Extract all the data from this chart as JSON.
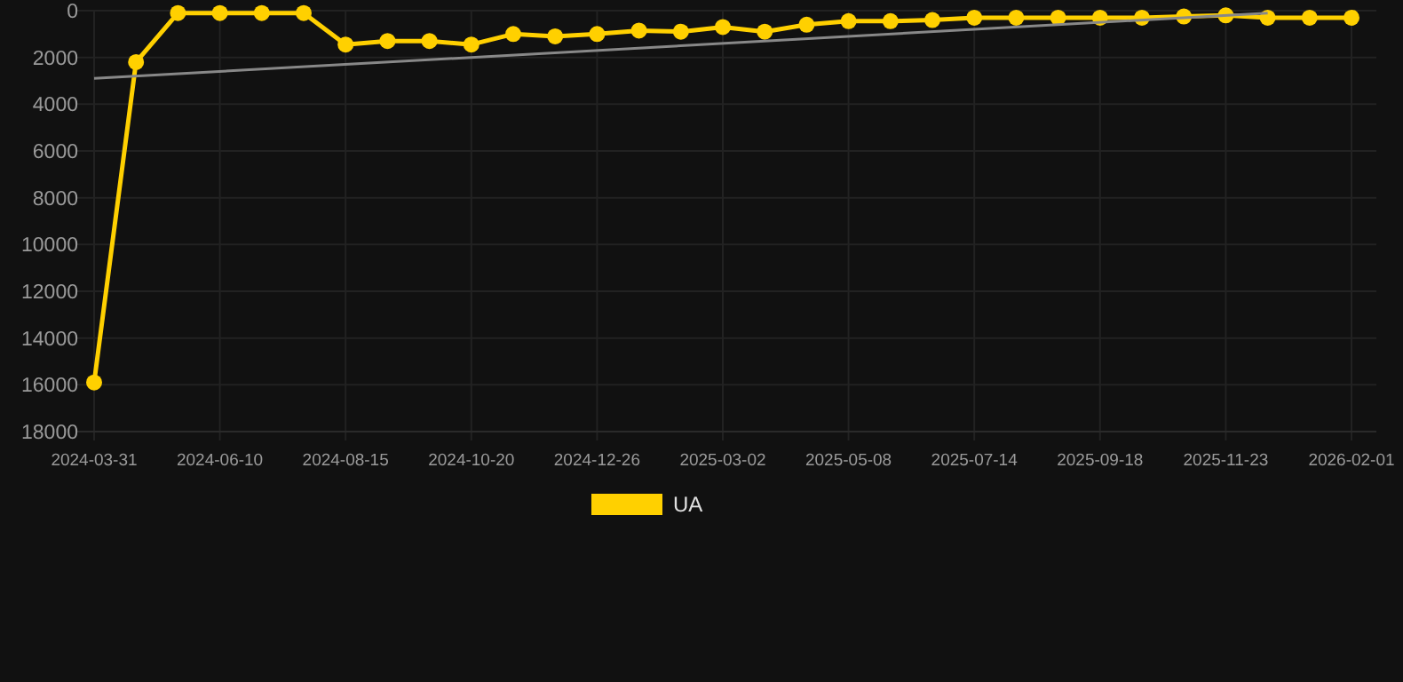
{
  "chart_data": {
    "type": "line",
    "categories": [
      "2024-03-31",
      null,
      null,
      "2024-06-10",
      null,
      null,
      "2024-08-15",
      null,
      null,
      "2024-10-20",
      null,
      null,
      "2024-12-26",
      null,
      null,
      "2025-03-02",
      null,
      null,
      "2025-05-08",
      null,
      null,
      "2025-07-14",
      null,
      null,
      "2025-09-18",
      null,
      null,
      "2025-11-23",
      null,
      null,
      "2026-02-01"
    ],
    "series": [
      {
        "name": "UA",
        "color": "#ffd000",
        "marker": "circle",
        "values": [
          15900,
          2200,
          100,
          100,
          100,
          100,
          1450,
          1300,
          1300,
          1450,
          1000,
          1100,
          1000,
          850,
          900,
          700,
          900,
          600,
          450,
          450,
          400,
          300,
          300,
          300,
          300,
          300,
          250,
          200,
          300,
          300,
          300
        ]
      },
      {
        "type": "line",
        "color": "#888888",
        "marker": "none",
        "values": [
          2900,
          null,
          null,
          null,
          null,
          null,
          null,
          null,
          null,
          null,
          null,
          null,
          null,
          null,
          null,
          null,
          null,
          null,
          null,
          null,
          null,
          null,
          null,
          null,
          null,
          null,
          null,
          null,
          100,
          null,
          null
        ]
      }
    ],
    "ylim": [
      18000,
      0
    ],
    "yticks": [
      0,
      2000,
      4000,
      6000,
      8000,
      10000,
      12000,
      14000,
      16000,
      18000
    ],
    "grid": true,
    "legend": "bottom"
  }
}
